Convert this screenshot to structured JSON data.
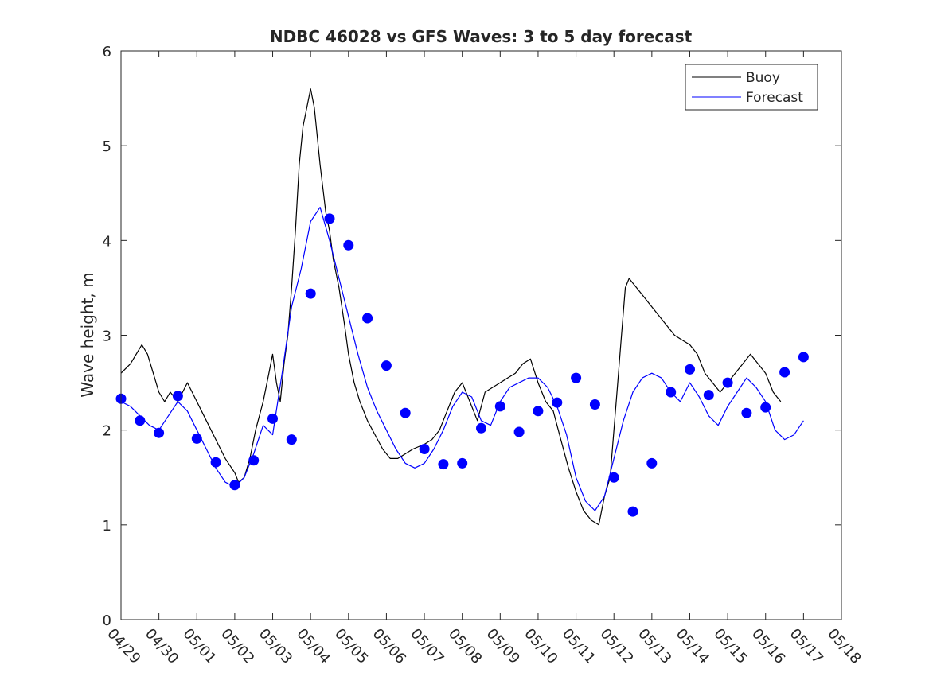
{
  "chart_data": {
    "type": "line",
    "title": "NDBC 46028 vs GFS Waves: 3 to 5 day forecast",
    "ylabel": "Wave height, m",
    "xlabel": "",
    "ylim": [
      0,
      6
    ],
    "xlim": [
      "04/29",
      "05/18"
    ],
    "yticks": [
      "0",
      "1",
      "2",
      "3",
      "4",
      "5",
      "6"
    ],
    "xticks": [
      "04/29",
      "04/30",
      "05/01",
      "05/02",
      "05/03",
      "05/04",
      "05/05",
      "05/06",
      "05/07",
      "05/08",
      "05/09",
      "05/10",
      "05/11",
      "05/12",
      "05/13",
      "05/14",
      "05/15",
      "05/16",
      "05/17",
      "05/18"
    ],
    "grid": false,
    "legend": {
      "position": "top-right",
      "entries": [
        "Buoy",
        "Forecast"
      ]
    },
    "colors": {
      "buoy": "#000000",
      "forecast": "#0000ff",
      "axes": "#262626"
    },
    "series": [
      {
        "name": "Buoy",
        "x": [
          0.0,
          0.25,
          0.4,
          0.55,
          0.7,
          0.85,
          1.0,
          1.15,
          1.3,
          1.5,
          1.75,
          2.0,
          2.25,
          2.5,
          2.75,
          3.0,
          3.1,
          3.25,
          3.4,
          3.55,
          3.75,
          3.9,
          4.0,
          4.1,
          4.2,
          4.3,
          4.4,
          4.5,
          4.6,
          4.7,
          4.8,
          5.0,
          5.1,
          5.25,
          5.4,
          5.5,
          5.6,
          5.75,
          5.9,
          6.0,
          6.15,
          6.3,
          6.5,
          6.7,
          6.9,
          7.1,
          7.3,
          7.5,
          7.7,
          8.0,
          8.2,
          8.4,
          8.6,
          8.8,
          9.0,
          9.2,
          9.4,
          9.6,
          9.8,
          10.0,
          10.2,
          10.4,
          10.6,
          10.8,
          11.0,
          11.2,
          11.4,
          11.6,
          11.8,
          12.0,
          12.2,
          12.4,
          12.6,
          12.75,
          12.9,
          13.0,
          13.1,
          13.2,
          13.3,
          13.4,
          13.5,
          13.6,
          13.8,
          14.0,
          14.2,
          14.4,
          14.6,
          14.8,
          15.0,
          15.2,
          15.4,
          15.6,
          15.8,
          16.0,
          16.2,
          16.4,
          16.6,
          16.8,
          17.0,
          17.2,
          17.3,
          17.4
        ],
        "y": [
          2.6,
          2.7,
          2.8,
          2.9,
          2.8,
          2.6,
          2.4,
          2.3,
          2.4,
          2.3,
          2.5,
          2.3,
          2.1,
          1.9,
          1.7,
          1.55,
          1.45,
          1.5,
          1.7,
          2.0,
          2.3,
          2.6,
          2.8,
          2.5,
          2.3,
          2.7,
          3.0,
          3.5,
          4.1,
          4.8,
          5.2,
          5.6,
          5.4,
          4.8,
          4.3,
          4.1,
          3.8,
          3.5,
          3.1,
          2.8,
          2.5,
          2.3,
          2.1,
          1.95,
          1.8,
          1.7,
          1.7,
          1.75,
          1.8,
          1.85,
          1.9,
          2.0,
          2.2,
          2.4,
          2.5,
          2.3,
          2.1,
          2.4,
          2.45,
          2.5,
          2.55,
          2.6,
          2.7,
          2.75,
          2.5,
          2.3,
          2.2,
          1.9,
          1.6,
          1.35,
          1.15,
          1.05,
          1.0,
          1.3,
          1.5,
          2.0,
          2.5,
          3.0,
          3.5,
          3.6,
          3.55,
          3.5,
          3.4,
          3.3,
          3.2,
          3.1,
          3.0,
          2.95,
          2.9,
          2.8,
          2.6,
          2.5,
          2.4,
          2.5,
          2.6,
          2.7,
          2.8,
          2.7,
          2.6,
          2.4,
          2.35,
          2.3
        ]
      },
      {
        "name": "Forecast",
        "x": [
          0.0,
          0.25,
          0.5,
          0.75,
          1.0,
          1.25,
          1.5,
          1.75,
          2.0,
          2.25,
          2.5,
          2.75,
          3.0,
          3.25,
          3.5,
          3.75,
          4.0,
          4.25,
          4.5,
          4.75,
          5.0,
          5.25,
          5.5,
          5.75,
          6.0,
          6.25,
          6.5,
          6.75,
          7.0,
          7.25,
          7.5,
          7.75,
          8.0,
          8.25,
          8.5,
          8.75,
          9.0,
          9.25,
          9.5,
          9.75,
          10.0,
          10.25,
          10.5,
          10.75,
          11.0,
          11.25,
          11.5,
          11.75,
          12.0,
          12.25,
          12.5,
          12.75,
          13.0,
          13.25,
          13.5,
          13.75,
          14.0,
          14.25,
          14.5,
          14.75,
          15.0,
          15.25,
          15.5,
          15.75,
          16.0,
          16.25,
          16.5,
          16.75,
          17.0,
          17.25,
          17.5,
          17.75,
          18.0
        ],
        "y": [
          2.3,
          2.25,
          2.15,
          2.05,
          2.0,
          2.15,
          2.3,
          2.2,
          2.0,
          1.8,
          1.6,
          1.45,
          1.4,
          1.5,
          1.75,
          2.05,
          1.95,
          2.6,
          3.3,
          3.7,
          4.2,
          4.35,
          4.0,
          3.6,
          3.2,
          2.8,
          2.45,
          2.2,
          2.0,
          1.8,
          1.65,
          1.6,
          1.65,
          1.8,
          2.0,
          2.25,
          2.4,
          2.35,
          2.1,
          2.05,
          2.3,
          2.45,
          2.5,
          2.55,
          2.55,
          2.45,
          2.25,
          1.95,
          1.5,
          1.25,
          1.15,
          1.3,
          1.7,
          2.1,
          2.4,
          2.55,
          2.6,
          2.55,
          2.4,
          2.3,
          2.5,
          2.35,
          2.15,
          2.05,
          2.25,
          2.4,
          2.55,
          2.45,
          2.3,
          2.0,
          1.9,
          1.95,
          2.1
        ]
      },
      {
        "name": "",
        "x": [
          0.0,
          0.5,
          1.0,
          1.5,
          2.0,
          2.5,
          3.0,
          3.5,
          4.0,
          4.5,
          5.0,
          5.5,
          6.0,
          6.5,
          7.0,
          7.5,
          8.0,
          8.5,
          9.0,
          9.5,
          10.0,
          10.5,
          11.0,
          11.5,
          12.0,
          12.5,
          13.0,
          13.5,
          14.0,
          14.5,
          15.0,
          15.5,
          16.0,
          16.5,
          17.0,
          17.5,
          18.0
        ],
        "y": [
          2.33,
          2.1,
          1.97,
          2.36,
          1.91,
          1.66,
          1.42,
          1.68,
          2.12,
          1.9,
          3.44,
          4.23,
          3.95,
          3.18,
          2.68,
          2.18,
          1.8,
          1.64,
          1.65,
          2.02,
          2.25,
          1.98,
          2.2,
          2.29,
          2.55,
          2.27,
          1.5,
          1.14,
          1.65,
          2.4,
          2.64,
          2.37,
          2.5,
          2.18,
          2.24,
          2.61,
          2.77
        ]
      }
    ]
  }
}
